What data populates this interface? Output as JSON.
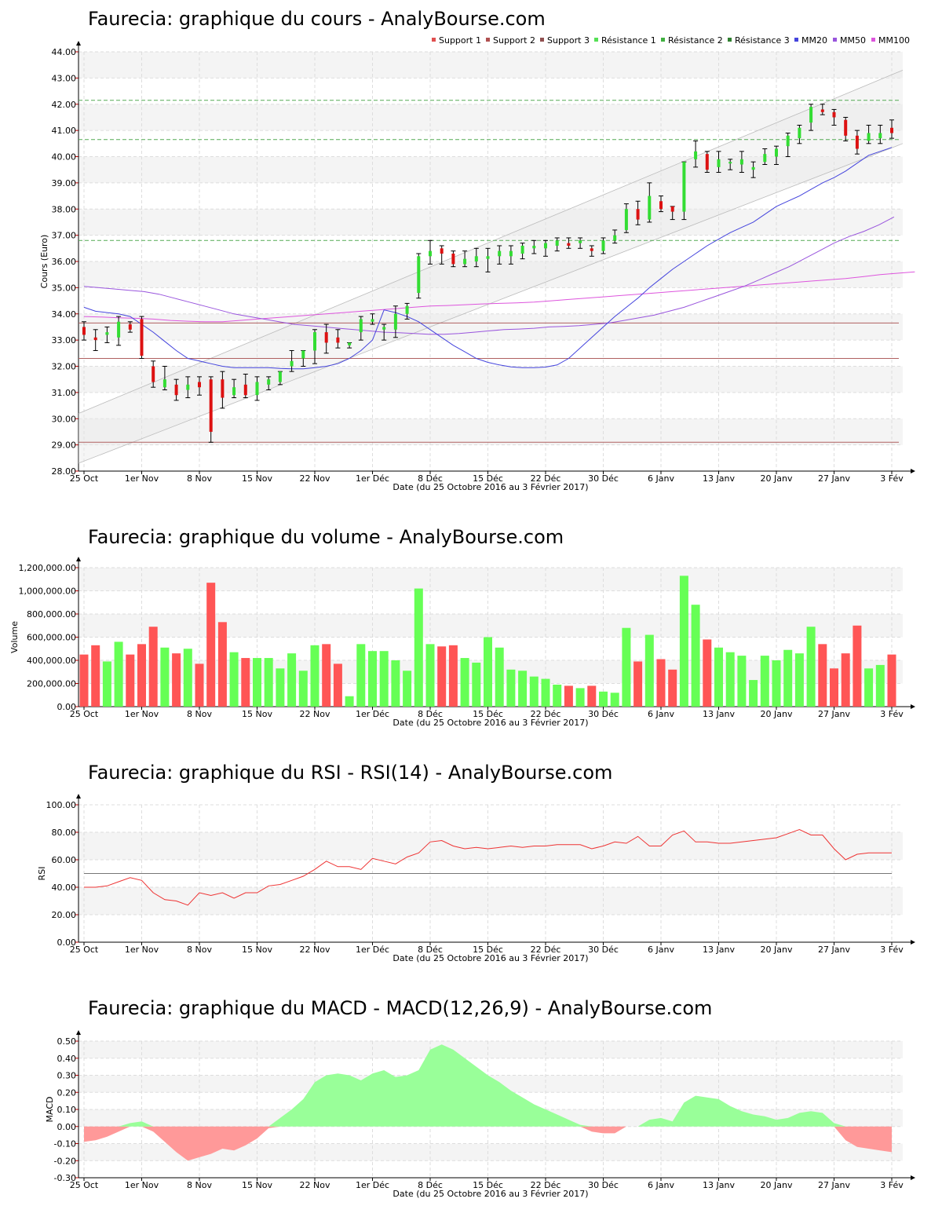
{
  "chart_data": [
    {
      "id": "price",
      "type": "candlestick",
      "title": "Faurecia: graphique du cours - AnalyBourse.com",
      "ylabel": "Cours (Euro)",
      "xlabel": "Date (du 25 Octobre 2016 au 3 Février 2017)",
      "ylim": [
        28,
        44
      ],
      "y_ticks": [
        "28.00",
        "29.00",
        "30.00",
        "31.00",
        "32.00",
        "33.00",
        "34.00",
        "35.00",
        "36.00",
        "37.00",
        "38.00",
        "39.00",
        "40.00",
        "41.00",
        "42.00",
        "43.00",
        "44.00"
      ],
      "x_ticks": [
        {
          "label": "25 Oct",
          "i": 0
        },
        {
          "label": "1er Nov",
          "i": 5
        },
        {
          "label": "8 Nov",
          "i": 10
        },
        {
          "label": "15 Nov",
          "i": 15
        },
        {
          "label": "22 Nov",
          "i": 20
        },
        {
          "label": "1er Déc",
          "i": 25
        },
        {
          "label": "8 Déc",
          "i": 30
        },
        {
          "label": "15 Déc",
          "i": 35
        },
        {
          "label": "22 Déc",
          "i": 40
        },
        {
          "label": "30 Déc",
          "i": 45
        },
        {
          "label": "6 Janv",
          "i": 50
        },
        {
          "label": "13 Janv",
          "i": 55
        },
        {
          "label": "20 Janv",
          "i": 60
        },
        {
          "label": "27 Janv",
          "i": 65
        },
        {
          "label": "3 Fév",
          "i": 70
        }
      ],
      "legend": [
        {
          "name": "Support 1",
          "color": "#e05050"
        },
        {
          "name": "Support 2",
          "color": "#b05050"
        },
        {
          "name": "Support 3",
          "color": "#905050"
        },
        {
          "name": "Résistance 1",
          "color": "#55e055"
        },
        {
          "name": "Résistance 2",
          "color": "#40b040"
        },
        {
          "name": "Résistance 3",
          "color": "#308030"
        },
        {
          "name": "MM20",
          "color": "#4444dd"
        },
        {
          "name": "MM50",
          "color": "#9955dd"
        },
        {
          "name": "MM100",
          "color": "#dd55dd"
        }
      ],
      "supports": [
        33.65,
        32.3,
        29.1
      ],
      "resistances": [
        42.15,
        40.65,
        36.8
      ],
      "candles": [
        [
          33.5,
          33.2,
          33.7,
          33.0
        ],
        [
          33.1,
          33.0,
          33.4,
          32.6
        ],
        [
          33.2,
          33.3,
          33.5,
          32.9
        ],
        [
          33.1,
          33.7,
          33.9,
          32.8
        ],
        [
          33.6,
          33.4,
          33.7,
          33.3
        ],
        [
          33.8,
          32.4,
          33.9,
          32.3
        ],
        [
          32.0,
          31.4,
          32.2,
          31.2
        ],
        [
          31.2,
          31.5,
          32.0,
          31.1
        ],
        [
          31.3,
          30.9,
          31.5,
          30.7
        ],
        [
          31.1,
          31.3,
          31.6,
          30.8
        ],
        [
          31.4,
          31.2,
          31.6,
          30.9
        ],
        [
          31.5,
          29.5,
          31.6,
          29.1
        ],
        [
          31.5,
          30.8,
          31.8,
          30.4
        ],
        [
          30.9,
          31.2,
          31.5,
          30.8
        ],
        [
          31.3,
          30.9,
          31.7,
          30.8
        ],
        [
          30.9,
          31.4,
          31.6,
          30.7
        ],
        [
          31.3,
          31.5,
          31.6,
          31.1
        ],
        [
          31.4,
          31.8,
          31.8,
          31.3
        ],
        [
          32.0,
          32.2,
          32.6,
          31.8
        ],
        [
          32.3,
          32.6,
          32.6,
          32.0
        ],
        [
          32.6,
          33.3,
          33.4,
          32.1
        ],
        [
          33.3,
          32.9,
          33.6,
          32.5
        ],
        [
          33.1,
          32.9,
          33.4,
          32.7
        ],
        [
          32.8,
          32.9,
          32.9,
          32.7
        ],
        [
          33.3,
          33.8,
          33.9,
          33.0
        ],
        [
          33.7,
          33.8,
          34.0,
          33.6
        ],
        [
          33.4,
          33.5,
          33.6,
          33.0
        ],
        [
          33.4,
          34.0,
          34.3,
          33.1
        ],
        [
          34.0,
          34.3,
          34.4,
          33.8
        ],
        [
          34.8,
          36.2,
          36.3,
          34.6
        ],
        [
          36.2,
          36.4,
          36.8,
          35.9
        ],
        [
          36.5,
          36.3,
          36.6,
          35.9
        ],
        [
          36.3,
          35.9,
          36.4,
          35.8
        ],
        [
          35.9,
          36.1,
          36.4,
          35.8
        ],
        [
          36.0,
          36.2,
          36.5,
          35.8
        ],
        [
          36.1,
          36.2,
          36.5,
          35.6
        ],
        [
          36.2,
          36.4,
          36.6,
          35.9
        ],
        [
          36.2,
          36.4,
          36.6,
          35.9
        ],
        [
          36.3,
          36.6,
          36.7,
          36.1
        ],
        [
          36.5,
          36.6,
          36.8,
          36.3
        ],
        [
          36.5,
          36.7,
          36.8,
          36.2
        ],
        [
          36.6,
          36.8,
          36.9,
          36.4
        ],
        [
          36.7,
          36.6,
          36.9,
          36.5
        ],
        [
          36.7,
          36.8,
          36.9,
          36.5
        ],
        [
          36.5,
          36.4,
          36.6,
          36.2
        ],
        [
          36.4,
          36.8,
          36.9,
          36.3
        ],
        [
          36.8,
          37.0,
          37.2,
          36.7
        ],
        [
          37.2,
          38.0,
          38.2,
          37.1
        ],
        [
          38.0,
          37.6,
          38.3,
          37.4
        ],
        [
          37.6,
          38.5,
          39.0,
          37.5
        ],
        [
          38.3,
          38.0,
          38.5,
          37.9
        ],
        [
          38.1,
          37.9,
          38.1,
          37.6
        ],
        [
          37.9,
          39.8,
          39.8,
          37.6
        ],
        [
          39.9,
          40.2,
          40.6,
          39.6
        ],
        [
          40.1,
          39.5,
          40.2,
          39.4
        ],
        [
          39.6,
          39.9,
          40.2,
          39.4
        ],
        [
          39.8,
          39.8,
          39.9,
          39.5
        ],
        [
          39.7,
          39.9,
          40.2,
          39.4
        ],
        [
          39.5,
          39.6,
          39.8,
          39.2
        ],
        [
          39.8,
          40.1,
          40.3,
          39.7
        ],
        [
          40.0,
          40.3,
          40.4,
          39.7
        ],
        [
          40.4,
          40.8,
          40.9,
          40.0
        ],
        [
          40.7,
          41.1,
          41.2,
          40.5
        ],
        [
          41.3,
          41.9,
          42.0,
          41.0
        ],
        [
          41.8,
          41.7,
          42.0,
          41.6
        ],
        [
          41.7,
          41.5,
          41.8,
          41.2
        ],
        [
          41.4,
          40.8,
          41.5,
          40.6
        ],
        [
          40.8,
          40.3,
          41.0,
          40.1
        ],
        [
          40.6,
          40.9,
          41.2,
          40.5
        ],
        [
          40.7,
          40.9,
          41.2,
          40.5
        ],
        [
          41.1,
          40.9,
          41.4,
          40.7
        ]
      ],
      "mm20": [
        34.15,
        34.05,
        33.9,
        33.7,
        33.4,
        33.1,
        32.8,
        32.55,
        32.3,
        32.15,
        32.05,
        31.98,
        31.95,
        31.95,
        31.97,
        32.05,
        32.3,
        32.7,
        33.1,
        33.5,
        33.9,
        34.25,
        34.6,
        35.0,
        35.35,
        35.7,
        36.0,
        36.3,
        36.6,
        36.85,
        37.1,
        37.3,
        37.5,
        37.8,
        38.1,
        38.3,
        38.5,
        38.75,
        39.0,
        39.2,
        39.45,
        39.75,
        40.05,
        40.2,
        40.35
      ],
      "mm20_start": 26,
      "mm20_head": [
        34.25,
        34.1,
        34.05,
        34.0,
        33.9,
        33.6,
        33.3,
        32.95,
        32.6,
        32.3,
        32.2,
        32.1,
        32.0,
        31.95,
        31.95,
        31.95,
        31.95,
        31.92,
        31.9,
        31.9,
        31.95,
        32.0,
        32.1,
        32.3,
        32.6,
        33.0
      ],
      "mm50": [
        35.05,
        35.0,
        34.95,
        34.9,
        34.85,
        34.75,
        34.6,
        34.45,
        34.3,
        34.15,
        34.0,
        33.9,
        33.8,
        33.7,
        33.6,
        33.55,
        33.5,
        33.45,
        33.4,
        33.35,
        33.3,
        33.28,
        33.25,
        33.22,
        33.22,
        33.25,
        33.3,
        33.35,
        33.4,
        33.42,
        33.45,
        33.5,
        33.52,
        33.55,
        33.6,
        33.65,
        33.75,
        33.85,
        33.95,
        34.1,
        34.25,
        34.45,
        34.65,
        34.85,
        35.05,
        35.3,
        35.55,
        35.8,
        36.1,
        36.4,
        36.7,
        36.95,
        37.15,
        37.4,
        37.7
      ],
      "mm50_step": 1.3,
      "mm100": [
        33.9,
        33.88,
        33.85,
        33.83,
        33.8,
        33.75,
        33.72,
        33.7,
        33.7,
        33.75,
        33.8,
        33.85,
        33.9,
        33.95,
        34.0,
        34.05,
        34.1,
        34.15,
        34.2,
        34.25,
        34.3,
        34.32,
        34.35,
        34.38,
        34.4,
        34.42,
        34.45,
        34.5,
        34.55,
        34.6,
        34.65,
        34.7,
        34.75,
        34.8,
        34.85,
        34.9,
        34.95,
        35.0,
        35.05,
        35.1,
        35.15,
        35.2,
        35.25,
        35.3,
        35.35,
        35.42,
        35.5,
        35.55,
        35.6
      ],
      "mm100_step": 1.5,
      "channel": {
        "upper": [
          30.2,
          43.3
        ],
        "lower": [
          28.3,
          40.5
        ]
      }
    },
    {
      "id": "volume",
      "type": "bar",
      "title": "Faurecia: graphique du volume - AnalyBourse.com",
      "ylabel": "Volume",
      "xlabel": "Date (du 25 Octobre 2016 au 3 Février 2017)",
      "ylim": [
        0,
        1200000
      ],
      "y_ticks": [
        "0.00",
        "200,000.00",
        "400,000.00",
        "600,000.00",
        "800,000.00",
        "1,000,000.00",
        "1,200,000.00"
      ],
      "values": [
        450000,
        530000,
        390000,
        560000,
        450000,
        540000,
        690000,
        510000,
        460000,
        500000,
        370000,
        1070000,
        730000,
        470000,
        420000,
        420000,
        420000,
        330000,
        460000,
        310000,
        530000,
        540000,
        370000,
        90000,
        540000,
        480000,
        480000,
        400000,
        310000,
        1020000,
        540000,
        520000,
        530000,
        420000,
        380000,
        600000,
        510000,
        320000,
        310000,
        260000,
        240000,
        190000,
        180000,
        160000,
        180000,
        130000,
        120000,
        680000,
        390000,
        620000,
        410000,
        320000,
        1130000,
        880000,
        580000,
        510000,
        470000,
        440000,
        230000,
        440000,
        400000,
        490000,
        460000,
        690000,
        540000,
        330000,
        460000,
        700000,
        330000,
        360000,
        450000
      ]
    },
    {
      "id": "rsi",
      "type": "line",
      "title": "Faurecia: graphique du RSI - RSI(14) - AnalyBourse.com",
      "ylabel": "RSI",
      "xlabel": "Date (du 25 Octobre 2016 au 3 Février 2017)",
      "ylim": [
        0,
        100
      ],
      "y_ticks": [
        "0.00",
        "20.00",
        "40.00",
        "60.00",
        "80.00",
        "100.00"
      ],
      "reference": 50,
      "values": [
        40,
        40,
        41,
        44,
        47,
        45,
        36,
        31,
        30,
        27,
        36,
        34,
        36,
        32,
        36,
        36,
        41,
        42,
        45,
        48,
        53,
        59,
        55,
        55,
        53,
        61,
        59,
        57,
        62,
        65,
        73,
        74,
        70,
        68,
        69,
        68,
        69,
        70,
        69,
        70,
        70,
        71,
        71,
        71,
        68,
        70,
        73,
        72,
        77,
        70,
        70,
        78,
        81,
        73,
        73,
        72,
        72,
        73,
        74,
        75,
        76,
        79,
        82,
        78,
        78,
        68,
        60,
        64,
        65,
        65,
        65
      ]
    },
    {
      "id": "macd",
      "type": "area",
      "title": "Faurecia: graphique du MACD - MACD(12,26,9) - AnalyBourse.com",
      "ylabel": "MACD",
      "xlabel": "Date (du 25 Octobre 2016 au 3 Février 2017)",
      "ylim": [
        -0.3,
        0.5
      ],
      "y_ticks": [
        "-0.30",
        "-0.20",
        "-0.10",
        "0.00",
        "0.10",
        "0.20",
        "0.30",
        "0.40",
        "0.50"
      ],
      "values": [
        -0.09,
        -0.08,
        -0.06,
        -0.03,
        0.02,
        0.03,
        -0.03,
        -0.09,
        -0.15,
        -0.2,
        -0.18,
        -0.16,
        -0.13,
        -0.14,
        -0.11,
        -0.07,
        -0.01,
        0.05,
        0.1,
        0.16,
        0.26,
        0.3,
        0.31,
        0.3,
        0.27,
        0.31,
        0.33,
        0.29,
        0.3,
        0.33,
        0.45,
        0.48,
        0.45,
        0.4,
        0.35,
        0.3,
        0.26,
        0.21,
        0.17,
        0.13,
        0.1,
        0.07,
        0.04,
        0.01,
        -0.03,
        -0.04,
        -0.04,
        0.0,
        0.0,
        0.04,
        0.05,
        0.03,
        0.14,
        0.18,
        0.17,
        0.16,
        0.12,
        0.09,
        0.07,
        0.06,
        0.04,
        0.05,
        0.08,
        0.09,
        0.08,
        0.02,
        -0.08,
        -0.12,
        -0.13,
        -0.14,
        -0.15
      ]
    }
  ]
}
